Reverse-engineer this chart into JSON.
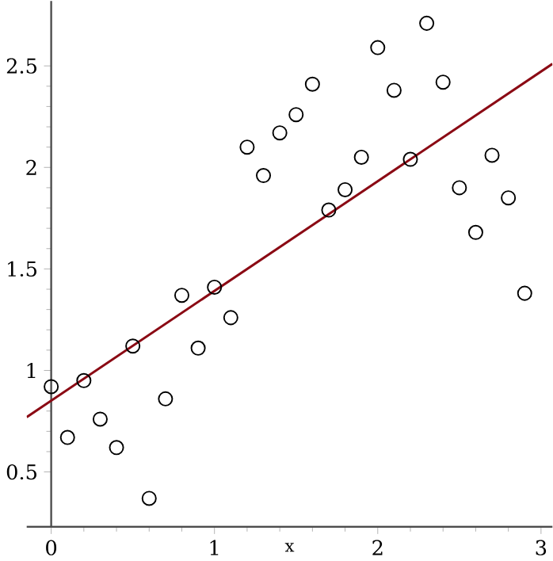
{
  "chart_data": {
    "type": "scatter",
    "xlabel": "x",
    "xlim": [
      -0.15,
      3.07
    ],
    "ylim": [
      0.23,
      2.82
    ],
    "xticks": [
      0,
      1,
      2,
      3
    ],
    "yticks": [
      0.5,
      1,
      1.5,
      2,
      2.5
    ],
    "grid": false,
    "series": [
      {
        "marker": "circle",
        "color": "#000000",
        "x": [
          0,
          0.1,
          0.2,
          0.3,
          0.4,
          0.5,
          0.6,
          0.7,
          0.8,
          0.9,
          1.0,
          1.1,
          1.2,
          1.3,
          1.4,
          1.5,
          1.6,
          1.7,
          1.8,
          1.9,
          2.0,
          2.1,
          2.2,
          2.3,
          2.4,
          2.5,
          2.6,
          2.7,
          2.8,
          2.9
        ],
        "values": [
          0.92,
          0.67,
          0.95,
          0.76,
          0.62,
          1.12,
          0.37,
          0.86,
          1.37,
          1.11,
          1.41,
          1.26,
          2.1,
          1.96,
          2.17,
          2.26,
          2.41,
          1.79,
          1.89,
          2.05,
          2.59,
          2.38,
          2.04,
          2.71,
          2.42,
          1.9,
          1.68,
          2.06,
          1.85,
          1.38
        ]
      },
      {
        "type": "line",
        "color": "#8b0a14",
        "x": [
          -0.15,
          3.07
        ],
        "values": [
          0.77,
          2.51
        ]
      }
    ]
  }
}
